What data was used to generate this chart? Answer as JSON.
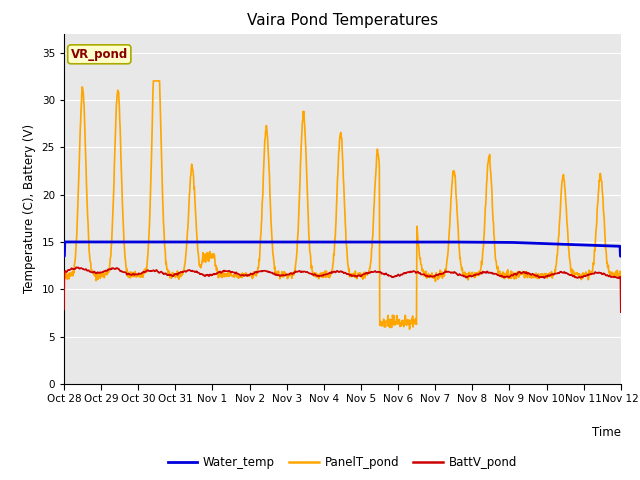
{
  "title": "Vaira Pond Temperatures",
  "xlabel": "Time",
  "ylabel": "Temperature (C), Battery (V)",
  "ylim": [
    0,
    37
  ],
  "yticks": [
    0,
    5,
    10,
    15,
    20,
    25,
    30,
    35
  ],
  "annotation_text": "VR_pond",
  "annotation_box_color": "#FFFFCC",
  "annotation_border_color": "#AAAA00",
  "water_temp_color": "#0000DD",
  "panel_temp_color": "#FFA500",
  "batt_color": "#CC0000",
  "bg_color": "#E8E8E8",
  "water_temp_lw": 2.0,
  "panel_temp_lw": 1.2,
  "batt_lw": 1.2,
  "x_tick_labels": [
    "Oct 28",
    "Oct 29",
    "Oct 30",
    "Oct 31",
    "Nov 1",
    "Nov 2",
    "Nov 3",
    "Nov 4",
    "Nov 5",
    "Nov 6",
    "Nov 7",
    "Nov 8",
    "Nov 9",
    "Nov 10",
    "Nov 11",
    "Nov 12"
  ],
  "x_tick_positions": [
    0,
    1,
    2,
    3,
    4,
    5,
    6,
    7,
    8,
    9,
    10,
    11,
    12,
    13,
    14,
    15
  ]
}
